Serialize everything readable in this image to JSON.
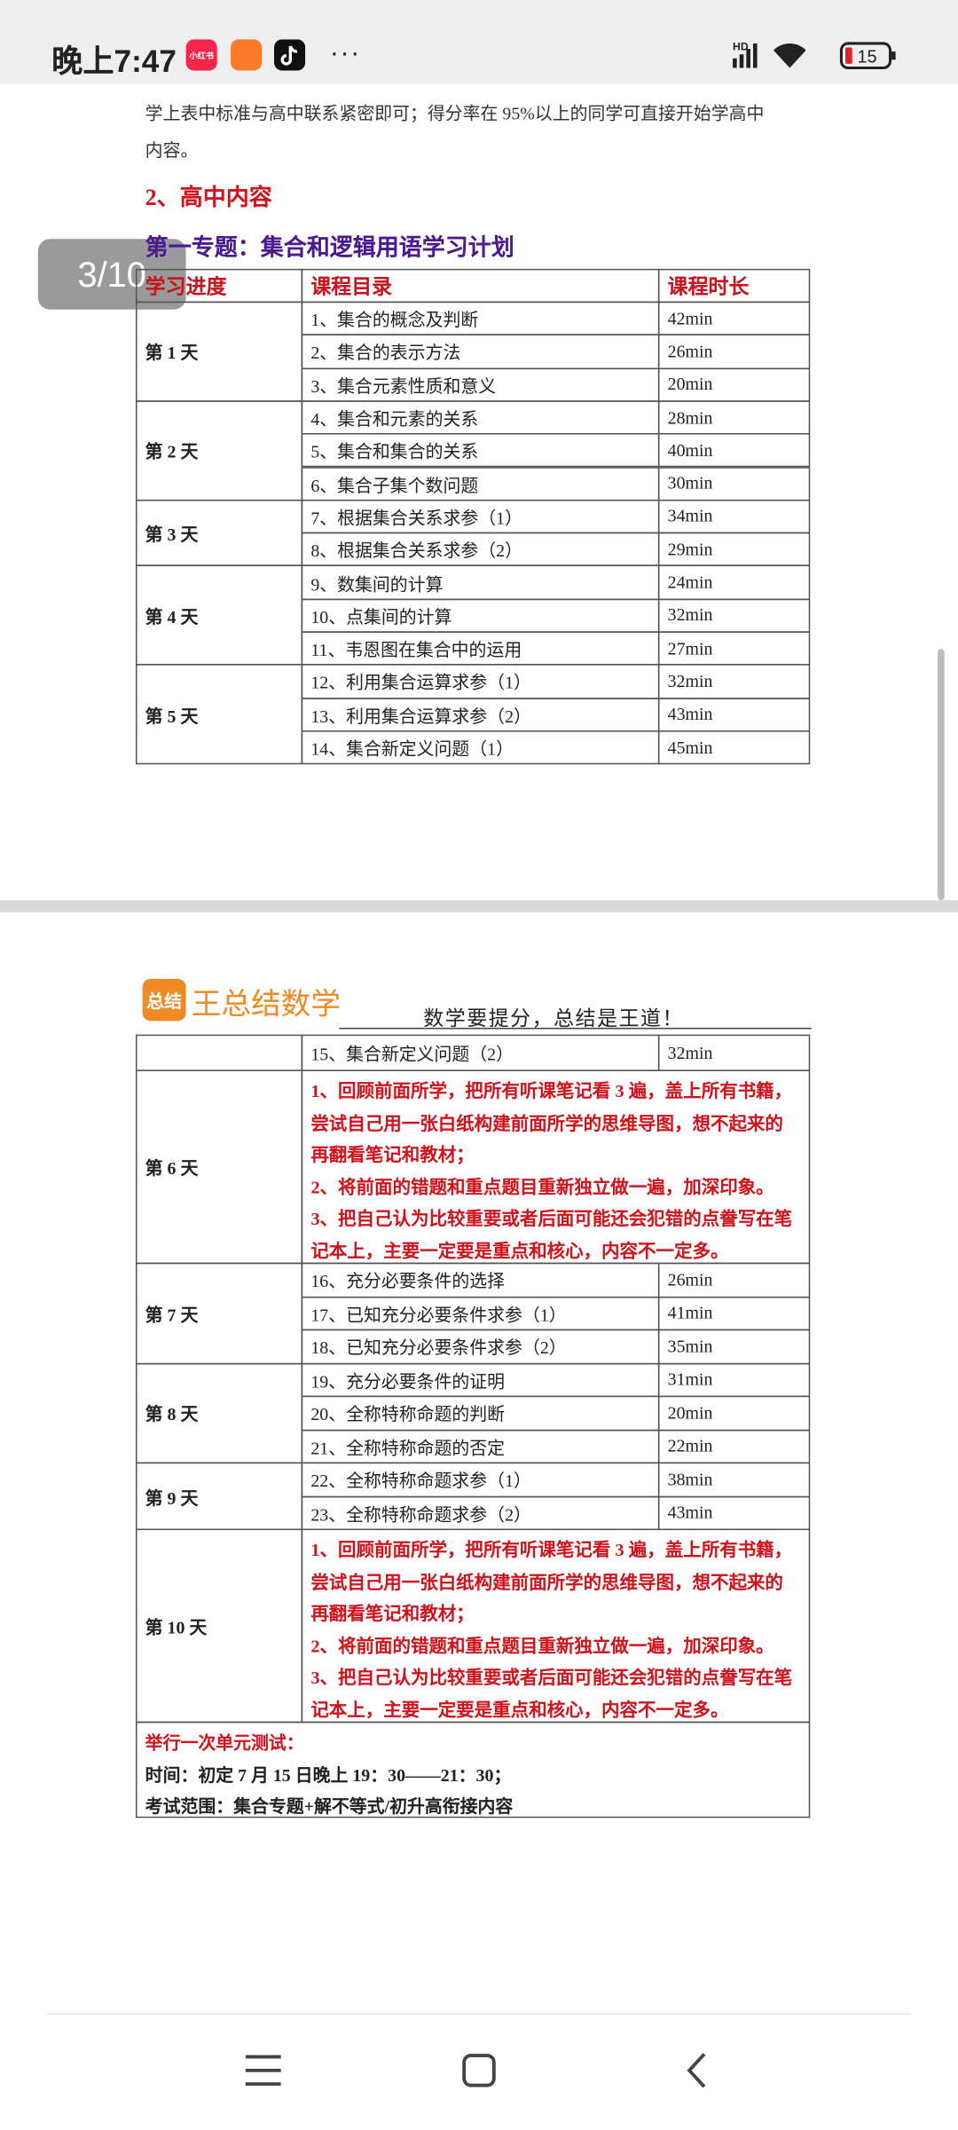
{
  "status_bar": {
    "time": "晚上7:47",
    "app_badge": "小红书",
    "battery": "15"
  },
  "viewer": {
    "page_indicator": "3/10"
  },
  "page1": {
    "intro": [
      "学上表中标准与高中联系紧密即可；得分率在 95%以上的同学可直接开始学高中",
      "内容。"
    ],
    "section_heading": "2、高中内容",
    "plan_title": "第一专题：集合和逻辑用语学习计划",
    "table": {
      "headers": [
        "学习进度",
        "课程目录",
        "课程时长"
      ],
      "days": [
        {
          "day": "第 1 天",
          "lessons": [
            {
              "lesson": "1、集合的概念及判断",
              "duration": "42min"
            },
            {
              "lesson": "2、集合的表示方法",
              "duration": "26min"
            },
            {
              "lesson": "3、集合元素性质和意义",
              "duration": "20min"
            }
          ]
        },
        {
          "day": "第 2 天",
          "lessons": [
            {
              "lesson": "4、集合和元素的关系",
              "duration": "28min"
            },
            {
              "lesson": "5、集合和集合的关系",
              "duration": "40min"
            },
            {
              "lesson": "6、集合子集个数问题",
              "duration": "30min"
            }
          ]
        },
        {
          "day": "第 3 天",
          "lessons": [
            {
              "lesson": "7、根据集合关系求参（1）",
              "duration": "34min"
            },
            {
              "lesson": "8、根据集合关系求参（2）",
              "duration": "29min"
            }
          ]
        },
        {
          "day": "第 4 天",
          "lessons": [
            {
              "lesson": "9、数集间的计算",
              "duration": "24min"
            },
            {
              "lesson": "10、点集间的计算",
              "duration": "32min"
            },
            {
              "lesson": "11、韦恩图在集合中的运用",
              "duration": "27min"
            }
          ]
        },
        {
          "day": "第 5 天",
          "lessons": [
            {
              "lesson": "12、利用集合运算求参（1）",
              "duration": "32min"
            },
            {
              "lesson": "13、利用集合运算求参（2）",
              "duration": "43min"
            },
            {
              "lesson": "14、集合新定义问题（1）",
              "duration": "45min"
            }
          ]
        }
      ]
    }
  },
  "page2": {
    "logo_badge": "总结",
    "logo_text": "王总结数学",
    "slogan": "数学要提分，总结是王道！",
    "table": {
      "continued": [
        {
          "lesson": "15、集合新定义问题（2）",
          "duration": "32min"
        }
      ],
      "days": [
        {
          "day": "第 6 天",
          "notes": [
            "1、回顾前面所学，把所有听课笔记看 3 遍，盖上所有书籍，尝试自己用一张白纸构建前面所学的思维导图，想不起来的再翻看笔记和教材；",
            "2、将前面的错题和重点题目重新独立做一遍，加深印象。",
            "3、把自己认为比较重要或者后面可能还会犯错的点誊写在笔记本上，主要一定要是重点和核心，内容不一定多。"
          ]
        },
        {
          "day": "第 7 天",
          "lessons": [
            {
              "lesson": "16、充分必要条件的选择",
              "duration": "26min"
            },
            {
              "lesson": "17、已知充分必要条件求参（1）",
              "duration": "41min"
            },
            {
              "lesson": "18、已知充分必要条件求参（2）",
              "duration": "35min"
            }
          ]
        },
        {
          "day": "第 8 天",
          "lessons": [
            {
              "lesson": "19、充分必要条件的证明",
              "duration": "31min"
            },
            {
              "lesson": "20、全称特称命题的判断",
              "duration": "20min"
            },
            {
              "lesson": "21、全称特称命题的否定",
              "duration": "22min"
            }
          ]
        },
        {
          "day": "第 9 天",
          "lessons": [
            {
              "lesson": "22、全称特称命题求参（1）",
              "duration": "38min"
            },
            {
              "lesson": "23、全称特称命题求参（2）",
              "duration": "43min"
            }
          ]
        },
        {
          "day": "第 10 天",
          "notes": [
            "1、回顾前面所学，把所有听课笔记看 3 遍，盖上所有书籍，尝试自己用一张白纸构建前面所学的思维导图，想不起来的再翻看笔记和教材；",
            "2、将前面的错题和重点题目重新独立做一遍，加深印象。",
            "3、把自己认为比较重要或者后面可能还会犯错的点誊写在笔记本上，主要一定要是重点和核心，内容不一定多。"
          ]
        }
      ],
      "exam": {
        "title": "举行一次单元测试：",
        "time": "时间：初定 7 月 15 日晚上 19：30——21：30；",
        "scope": "考试范围：集合专题+解不等式/初升高衔接内容"
      }
    }
  }
}
